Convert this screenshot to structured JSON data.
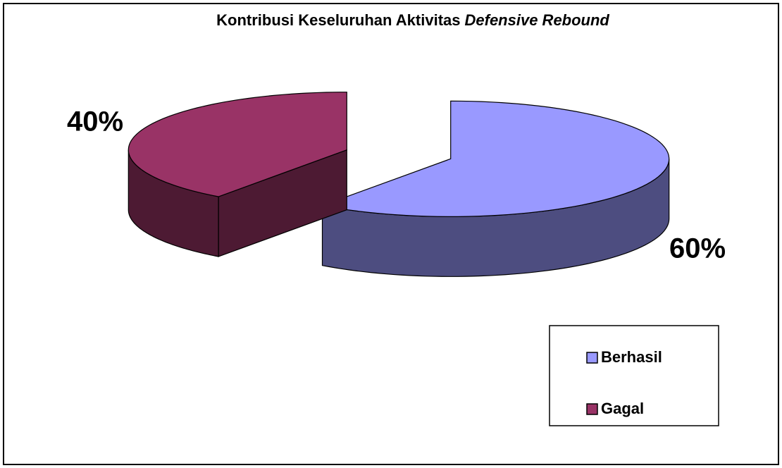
{
  "chart_data": {
    "type": "pie3d",
    "title": [
      "Kontribusi Keseluruhan Aktivitas",
      "Defensive Rebound"
    ],
    "categories": [
      "Berhasil",
      "Gagal"
    ],
    "values": [
      60,
      40
    ],
    "value_labels": [
      "60%",
      "40%"
    ],
    "colors": [
      "#9999ff",
      "#993366"
    ],
    "legend": "right"
  }
}
